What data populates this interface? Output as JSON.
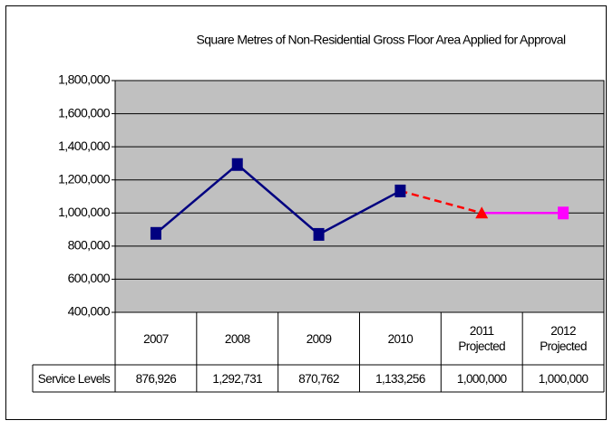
{
  "chart_data": {
    "type": "line",
    "title": "Square Metres of Non-Residential Gross Floor Area Applied for Approval",
    "categories": [
      "2007",
      "2008",
      "2009",
      "2010",
      "2011 Projected",
      "2012 Projected"
    ],
    "series": [
      {
        "name": "Service Levels",
        "color": "#000080",
        "values": [
          876926,
          1292731,
          870762,
          1133256,
          1000000,
          1000000
        ],
        "value_labels": [
          "876,926",
          "1,292,731",
          "870,762",
          "1,133,256",
          "1,000,000",
          "1,000,000"
        ],
        "point_colors": [
          "#000080",
          "#000080",
          "#000080",
          "#000080",
          "#ff0000",
          "#ff00ff"
        ],
        "point_markers": [
          "square",
          "square",
          "square",
          "square",
          "triangle",
          "square"
        ],
        "line_styles": [
          "solid",
          "solid",
          "solid",
          "dashed",
          "solid"
        ]
      }
    ],
    "ylim": [
      400000,
      1800000
    ],
    "yticks": [
      {
        "value": 400000,
        "label": "400,000"
      },
      {
        "value": 600000,
        "label": "600,000"
      },
      {
        "value": 800000,
        "label": "800,000"
      },
      {
        "value": 1000000,
        "label": "1,000,000"
      },
      {
        "value": 1200000,
        "label": "1,200,000"
      },
      {
        "value": 1400000,
        "label": "1,400,000"
      },
      {
        "value": 1600000,
        "label": "1,600,000"
      },
      {
        "value": 1800000,
        "label": "1,800,000"
      }
    ],
    "grid": true,
    "plot_background": "#c0c0c0",
    "data_table": true
  }
}
